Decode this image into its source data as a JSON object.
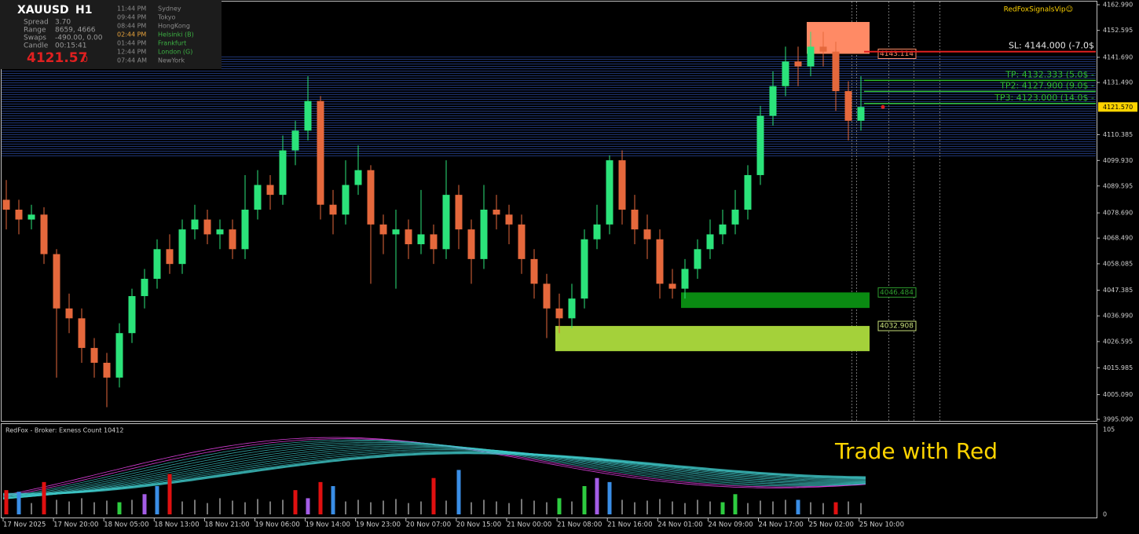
{
  "info": {
    "symbol": "XAUUSD",
    "timeframe": "H1",
    "rows": [
      [
        "Spread",
        "3.70"
      ],
      [
        "Range",
        "8659, 4666"
      ],
      [
        "Swaps",
        "-490.00, 0.00"
      ],
      [
        "Candle",
        "00:15:41"
      ]
    ],
    "bid_main": "4121.57",
    "bid_small": "0",
    "sessions": [
      {
        "time": "11:44 PM",
        "city": "Sydney",
        "color": "#8a8a8a"
      },
      {
        "time": "09:44 PM",
        "city": "Tokyo",
        "color": "#8a8a8a"
      },
      {
        "time": "08:44 PM",
        "city": "HongKong",
        "color": "#8a8a8a"
      },
      {
        "time": "02:44 PM",
        "city": "Helsinki  (B)",
        "color": "#3cb043",
        "time_color": "#e6a23c"
      },
      {
        "time": "01:44 PM",
        "city": "Frankfurt",
        "color": "#3cb043",
        "time_color": "#8a8a8a"
      },
      {
        "time": "12:44 PM",
        "city": "London  (G)",
        "color": "#3cb043",
        "time_color": "#8a8a8a"
      },
      {
        "time": "07:44 AM",
        "city": "NewYork",
        "color": "#8a8a8a"
      }
    ]
  },
  "brand": "RedFoxSignalsVip☺",
  "chart_data": [
    {
      "type": "candlestick",
      "up_color": "#2be37a",
      "down_color": "#e5683c",
      "open": [
        4084,
        4080,
        4076,
        4078,
        4062,
        4040,
        4036,
        4024,
        4018,
        4012,
        4030,
        4045,
        4052,
        4064,
        4058,
        4072,
        4076,
        4070,
        4072,
        4064,
        4080,
        4090,
        4086,
        4104,
        4112,
        4124,
        4082,
        4078,
        4090,
        4096,
        4074,
        4070,
        4072,
        4066,
        4070,
        4064,
        4086,
        4072,
        4060,
        4080,
        4078,
        4074,
        4060,
        4050,
        4040,
        4036,
        4044,
        4068,
        4074,
        4100,
        4080,
        4072,
        4068,
        4050,
        4048,
        4056,
        4064,
        4070,
        4074,
        4080,
        4094,
        4118,
        4130,
        4140,
        4138,
        4146,
        4144,
        4128,
        4116
      ],
      "high": [
        4092,
        4084,
        4082,
        4081,
        4064,
        4046,
        4040,
        4028,
        4022,
        4034,
        4048,
        4056,
        4068,
        4070,
        4076,
        4082,
        4080,
        4076,
        4076,
        4094,
        4096,
        4094,
        4110,
        4116,
        4134,
        4126,
        4088,
        4100,
        4106,
        4098,
        4078,
        4080,
        4076,
        4088,
        4074,
        4100,
        4090,
        4076,
        4090,
        4086,
        4082,
        4078,
        4064,
        4054,
        4046,
        4050,
        4072,
        4082,
        4102,
        4104,
        4086,
        4078,
        4072,
        4056,
        4060,
        4068,
        4076,
        4080,
        4088,
        4098,
        4122,
        4136,
        4146,
        4146,
        4152,
        4152,
        4148,
        4132,
        4134
      ],
      "low": [
        4072,
        4070,
        4072,
        4058,
        4012,
        4030,
        4018,
        4012,
        4000,
        4008,
        4026,
        4040,
        4048,
        4054,
        4054,
        4068,
        4066,
        4064,
        4060,
        4060,
        4076,
        4080,
        4082,
        4098,
        4108,
        4076,
        4070,
        4074,
        4086,
        4050,
        4062,
        4048,
        4060,
        4062,
        4058,
        4060,
        4064,
        4050,
        4056,
        4072,
        4066,
        4054,
        4044,
        4028,
        4030,
        4032,
        4040,
        4064,
        4070,
        4074,
        4066,
        4060,
        4044,
        4044,
        4044,
        4052,
        4060,
        4066,
        4070,
        4076,
        4090,
        4114,
        4126,
        4130,
        4134,
        4138,
        4120,
        4108,
        4112
      ],
      "close": [
        4080,
        4076,
        4078,
        4062,
        4040,
        4036,
        4024,
        4018,
        4012,
        4030,
        4045,
        4052,
        4064,
        4058,
        4072,
        4076,
        4070,
        4072,
        4064,
        4080,
        4090,
        4086,
        4104,
        4112,
        4124,
        4082,
        4078,
        4090,
        4096,
        4074,
        4070,
        4072,
        4066,
        4070,
        4064,
        4086,
        4072,
        4060,
        4080,
        4078,
        4074,
        4060,
        4050,
        4040,
        4036,
        4044,
        4068,
        4074,
        4100,
        4080,
        4072,
        4068,
        4050,
        4048,
        4056,
        4064,
        4070,
        4074,
        4080,
        4094,
        4118,
        4130,
        4140,
        4138,
        4146,
        4144,
        4128,
        4116,
        4121.57
      ],
      "ylim": [
        3995.09,
        4162.99
      ],
      "yticks": [
        {
          "value": 4162.99,
          "label": "4162.990"
        },
        {
          "value": 4152.595,
          "label": "4152.595"
        },
        {
          "value": 4141.69,
          "label": "4141.690"
        },
        {
          "value": 4131.49,
          "label": "4131.490"
        },
        {
          "value": 4110.385,
          "label": "4110.385"
        },
        {
          "value": 4099.93,
          "label": "4099.930"
        },
        {
          "value": 4089.595,
          "label": "4089.595"
        },
        {
          "value": 4078.69,
          "label": "4078.690"
        },
        {
          "value": 4068.49,
          "label": "4068.490"
        },
        {
          "value": 4058.085,
          "label": "4058.085"
        },
        {
          "value": 4047.385,
          "label": "4047.385"
        },
        {
          "value": 4036.99,
          "label": "4036.990"
        },
        {
          "value": 4026.595,
          "label": "4026.595"
        },
        {
          "value": 4015.985,
          "label": "4015.985"
        },
        {
          "value": 4005.09,
          "label": "4005.090"
        },
        {
          "value": 3995.09,
          "label": "3995.090"
        }
      ],
      "current_price": {
        "value": 4121.57,
        "label": "4121.570"
      },
      "x_labels": [
        "17 Nov 2025",
        "17 Nov 20:00",
        "18 Nov 05:00",
        "18 Nov 13:00",
        "18 Nov 21:00",
        "19 Nov 06:00",
        "19 Nov 14:00",
        "19 Nov 23:00",
        "20 Nov 07:00",
        "20 Nov 15:00",
        "21 Nov 00:00",
        "21 Nov 08:00",
        "21 Nov 16:00",
        "24 Nov 01:00",
        "24 Nov 09:00",
        "24 Nov 17:00",
        "25 Nov 02:00",
        "25 Nov 10:00"
      ],
      "zones": [
        {
          "top": 4156.0,
          "bottom": {
            "value": 4143.114,
            "label": "4143.114"
          },
          "color": "#ff8a65",
          "label_color": "#ff8a65"
        },
        {
          "top": {
            "value": 4046.484,
            "label": "4046.484"
          },
          "bottom": 4040.2,
          "color": "#0a8a12",
          "label_color": "#2e9e2e"
        },
        {
          "top": {
            "value": 4032.908,
            "label": "4032.908"
          },
          "bottom": 4022.7,
          "color": "#a4d13a",
          "label_color": "#c8e07a"
        }
      ],
      "trade_levels": [
        {
          "text": "SL: 4144.000 (-7.0$",
          "value": 4144.0,
          "color": "#e02020"
        },
        {
          "text": "TP: 4132.333 (5.0$ -",
          "value": 4132.333,
          "color": "#2ebd2e"
        },
        {
          "text": "TP2: 4127.900 (9.0$ -",
          "value": 4127.9,
          "color": "#2ebd2e"
        },
        {
          "text": "TP3: 4123.000 (14.0$ -",
          "value": 4123.0,
          "color": "#2ebd2e"
        }
      ]
    },
    {
      "type": "histogram",
      "label": "RedFox -  Broker: Exness    Count  10412",
      "ylim": [
        0,
        105
      ],
      "yticks": [
        105,
        0
      ],
      "annotation": "Trade with Red",
      "values": [
        30,
        28,
        14,
        40,
        18,
        16,
        20,
        15,
        17,
        15,
        18,
        25,
        35,
        50,
        16,
        18,
        14,
        20,
        17,
        15,
        19,
        16,
        18,
        30,
        20,
        40,
        35,
        16,
        18,
        15,
        17,
        19,
        14,
        16,
        45,
        17,
        55,
        15,
        18,
        16,
        14,
        19,
        17,
        15,
        20,
        16,
        35,
        45,
        40,
        18,
        15,
        17,
        19,
        16,
        14,
        18,
        16,
        15,
        25,
        14,
        17,
        16,
        18,
        18,
        15,
        14,
        15,
        16,
        14
      ],
      "colors": [
        "#e01010",
        "#3a8ee6",
        "#9e9e9e",
        "#e01010",
        "#9e9e9e",
        "#9e9e9e",
        "#9e9e9e",
        "#9e9e9e",
        "#9e9e9e",
        "#2ecc40",
        "#9e9e9e",
        "#a45de6",
        "#3a8ee6",
        "#e01010",
        "#9e9e9e",
        "#9e9e9e",
        "#9e9e9e",
        "#9e9e9e",
        "#9e9e9e",
        "#9e9e9e",
        "#9e9e9e",
        "#9e9e9e",
        "#9e9e9e",
        "#e01010",
        "#a45de6",
        "#e01010",
        "#3a8ee6",
        "#9e9e9e",
        "#9e9e9e",
        "#9e9e9e",
        "#9e9e9e",
        "#9e9e9e",
        "#9e9e9e",
        "#9e9e9e",
        "#e01010",
        "#9e9e9e",
        "#3a8ee6",
        "#9e9e9e",
        "#9e9e9e",
        "#9e9e9e",
        "#9e9e9e",
        "#9e9e9e",
        "#9e9e9e",
        "#9e9e9e",
        "#2ecc40",
        "#9e9e9e",
        "#2ecc40",
        "#a45de6",
        "#3a8ee6",
        "#9e9e9e",
        "#9e9e9e",
        "#9e9e9e",
        "#9e9e9e",
        "#9e9e9e",
        "#9e9e9e",
        "#9e9e9e",
        "#9e9e9e",
        "#2ecc40",
        "#2ecc40",
        "#9e9e9e",
        "#9e9e9e",
        "#9e9e9e",
        "#9e9e9e",
        "#3a8ee6",
        "#9e9e9e",
        "#9e9e9e",
        "#e01010",
        "#9e9e9e",
        "#9e9e9e"
      ]
    }
  ]
}
